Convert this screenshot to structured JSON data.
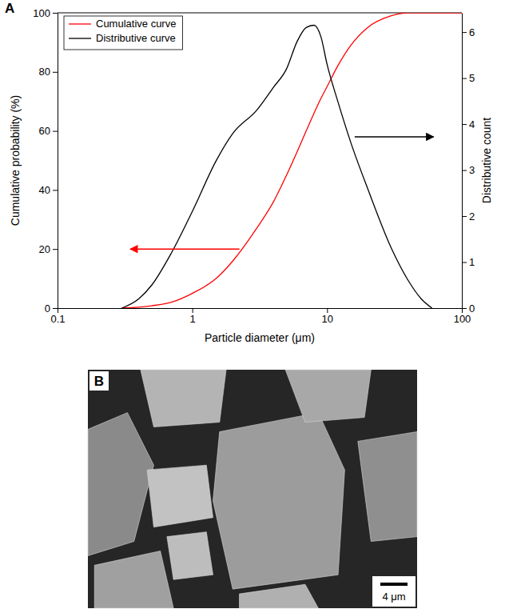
{
  "chart_data": [
    {
      "type": "line",
      "panel": "A",
      "x_label": "Particle diameter (μm)",
      "y_label": "Cumulative probability (%)",
      "y2_label": "Distributive count",
      "log": "x",
      "legend": "upper left",
      "xlim": [
        0.1,
        100
      ],
      "xticks": [
        0.1,
        1,
        10,
        100
      ],
      "ylim": [
        0,
        100
      ],
      "yticks": [
        0,
        20,
        40,
        60,
        80,
        100
      ],
      "y2lim": [
        0,
        6.42
      ],
      "y2ticks": [
        0,
        1,
        2,
        3,
        4,
        5,
        6
      ],
      "x": [
        0.3,
        0.4,
        0.5,
        0.7,
        1,
        1.5,
        2,
        3,
        4,
        5,
        6,
        7,
        8,
        9,
        10,
        12,
        15,
        20,
        30,
        40,
        50,
        60,
        100
      ],
      "series": [
        {
          "name": "Cumulative curve",
          "color": "#ff0000",
          "values": [
            0,
            0.3,
            0.8,
            2,
            5,
            10,
            16,
            27,
            36,
            45,
            53,
            60,
            66,
            71,
            75,
            82,
            89,
            95,
            99,
            100,
            100,
            100,
            100
          ]
        },
        {
          "name": "Distributive curve",
          "color": "#000000",
          "axis": "y2",
          "values": [
            0,
            0.2,
            0.5,
            1.2,
            2.1,
            3.2,
            3.8,
            4.3,
            4.8,
            5.2,
            5.8,
            6.1,
            6.15,
            5.9,
            5.3,
            4.5,
            3.6,
            2.6,
            1.3,
            0.6,
            0.2,
            0,
            null
          ]
        }
      ]
    },
    {
      "type": "image",
      "panel": "B",
      "scale_bar": "4 μm"
    }
  ]
}
